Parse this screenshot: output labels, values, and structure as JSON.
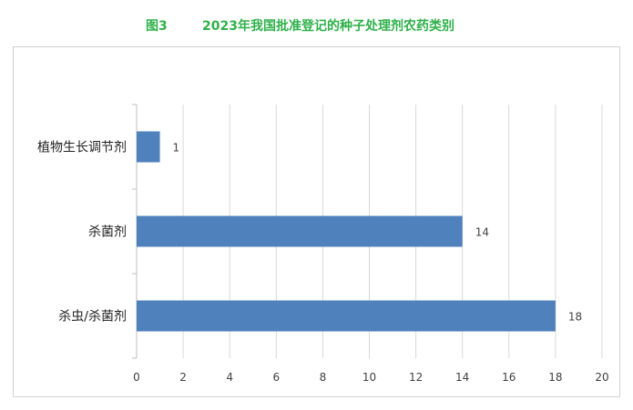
{
  "figure": {
    "number": "图3",
    "title": "2023年我国批准登记的种子处理剂农药类别"
  },
  "colors": {
    "title": "#2fb14a",
    "bar": "#4f81bd",
    "grid": "#d9d9d9",
    "axis": "#bfbfbf",
    "text": "#404040"
  },
  "chart_data": {
    "type": "bar",
    "orientation": "horizontal",
    "title": "2023年我国批准登记的种子处理剂农药类别",
    "categories": [
      "植物生长调节剂",
      "杀菌剂",
      "杀虫/杀菌剂"
    ],
    "values": [
      1,
      14,
      18
    ],
    "data_labels": [
      "1",
      "14",
      "18"
    ],
    "xlim": [
      0,
      20
    ],
    "x_ticks": [
      0,
      2,
      4,
      6,
      8,
      10,
      12,
      14,
      16,
      18,
      20
    ],
    "grid": true,
    "legend": false
  }
}
